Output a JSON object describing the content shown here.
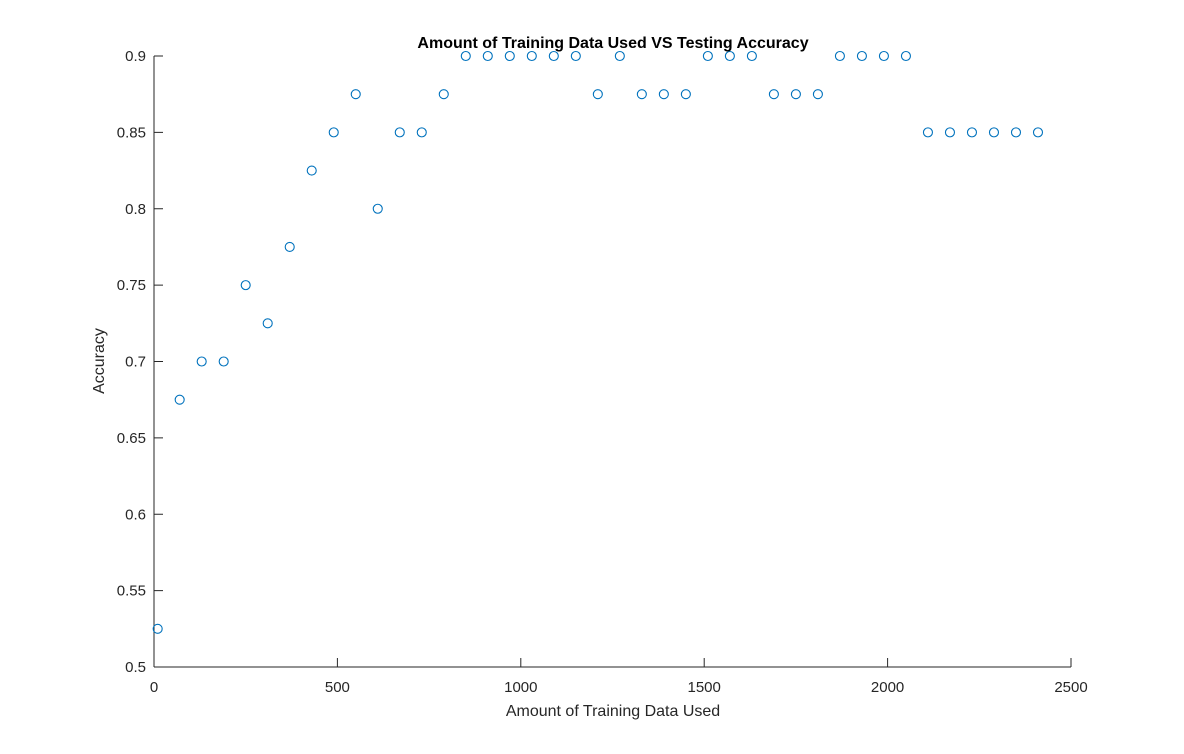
{
  "chart_data": {
    "type": "scatter",
    "title": "Amount of Training Data Used VS Testing Accuracy",
    "xlabel": "Amount of Training Data Used",
    "ylabel": "Accuracy",
    "xlim": [
      0,
      2500
    ],
    "ylim": [
      0.5,
      0.9
    ],
    "xticks": [
      0,
      500,
      1000,
      1500,
      2000,
      2500
    ],
    "yticks": [
      0.5,
      0.55,
      0.6,
      0.65,
      0.7,
      0.75,
      0.8,
      0.85,
      0.9
    ],
    "xtick_labels": [
      "0",
      "500",
      "1000",
      "1500",
      "2000",
      "2500"
    ],
    "ytick_labels": [
      "0.5",
      "0.55",
      "0.6",
      "0.65",
      "0.7",
      "0.75",
      "0.8",
      "0.85",
      "0.9"
    ],
    "grid": false,
    "marker": "circle-open",
    "marker_color": "#0072BD",
    "axis_color": "#262626",
    "x": [
      10,
      70,
      130,
      190,
      250,
      310,
      370,
      430,
      490,
      550,
      610,
      670,
      730,
      790,
      850,
      910,
      970,
      1030,
      1090,
      1150,
      1210,
      1270,
      1330,
      1390,
      1450,
      1510,
      1570,
      1630,
      1690,
      1750,
      1810,
      1870,
      1930,
      1990,
      2050,
      2110,
      2170,
      2230,
      2290,
      2350,
      2410
    ],
    "y": [
      0.525,
      0.675,
      0.7,
      0.7,
      0.75,
      0.725,
      0.775,
      0.825,
      0.85,
      0.875,
      0.8,
      0.85,
      0.85,
      0.875,
      0.9,
      0.9,
      0.9,
      0.9,
      0.9,
      0.9,
      0.875,
      0.9,
      0.875,
      0.875,
      0.875,
      0.9,
      0.9,
      0.9,
      0.875,
      0.875,
      0.875,
      0.9,
      0.9,
      0.9,
      0.9,
      0.85,
      0.85,
      0.85,
      0.85,
      0.85,
      0.85
    ]
  }
}
